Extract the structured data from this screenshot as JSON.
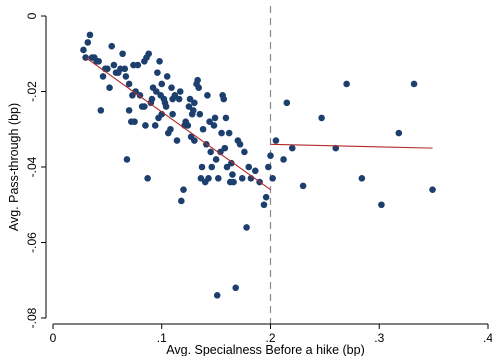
{
  "chart_data": {
    "type": "scatter",
    "xlabel": "Avg. Specialness Before a hike (bp)",
    "ylabel": "Avg. Pass-through (bp)",
    "xlim": [
      0,
      0.4
    ],
    "ylim": [
      -0.08,
      0
    ],
    "x_ticks": [
      {
        "value": 0,
        "label": "0"
      },
      {
        "value": 0.1,
        "label": ".1"
      },
      {
        "value": 0.2,
        "label": ".2"
      },
      {
        "value": 0.3,
        "label": ".3"
      },
      {
        "value": 0.4,
        "label": ".4"
      }
    ],
    "y_ticks": [
      {
        "value": 0,
        "label": "0"
      },
      {
        "value": -0.02,
        "label": "-.02"
      },
      {
        "value": -0.04,
        "label": "-.04"
      },
      {
        "value": -0.06,
        "label": "-.06"
      },
      {
        "value": -0.08,
        "label": "-.08"
      }
    ],
    "grid": false,
    "vertical_reference_line": {
      "x": 0.2,
      "style": "dashed"
    },
    "series": [
      {
        "kind": "points",
        "color": "#1c3f6e",
        "points": [
          [
            0.028,
            -0.009
          ],
          [
            0.03,
            -0.011
          ],
          [
            0.032,
            -0.007
          ],
          [
            0.034,
            -0.005
          ],
          [
            0.036,
            -0.011
          ],
          [
            0.038,
            -0.011
          ],
          [
            0.04,
            -0.012
          ],
          [
            0.042,
            -0.012
          ],
          [
            0.044,
            -0.025
          ],
          [
            0.046,
            -0.016
          ],
          [
            0.048,
            -0.014
          ],
          [
            0.05,
            -0.014
          ],
          [
            0.052,
            -0.019
          ],
          [
            0.054,
            -0.008
          ],
          [
            0.056,
            -0.013
          ],
          [
            0.058,
            -0.015
          ],
          [
            0.06,
            -0.015
          ],
          [
            0.062,
            -0.014
          ],
          [
            0.064,
            -0.01
          ],
          [
            0.066,
            -0.014
          ],
          [
            0.067,
            -0.016
          ],
          [
            0.068,
            -0.038
          ],
          [
            0.07,
            -0.018
          ],
          [
            0.07,
            -0.025
          ],
          [
            0.072,
            -0.028
          ],
          [
            0.073,
            -0.021
          ],
          [
            0.074,
            -0.013
          ],
          [
            0.075,
            -0.028
          ],
          [
            0.076,
            -0.02
          ],
          [
            0.078,
            -0.013
          ],
          [
            0.08,
            -0.021
          ],
          [
            0.082,
            -0.024
          ],
          [
            0.084,
            -0.024
          ],
          [
            0.084,
            -0.012
          ],
          [
            0.085,
            -0.029
          ],
          [
            0.086,
            -0.011
          ],
          [
            0.087,
            -0.043
          ],
          [
            0.088,
            -0.01
          ],
          [
            0.09,
            -0.023
          ],
          [
            0.091,
            -0.022
          ],
          [
            0.092,
            -0.019
          ],
          [
            0.094,
            -0.029
          ],
          [
            0.095,
            -0.02
          ],
          [
            0.096,
            -0.015
          ],
          [
            0.097,
            -0.027
          ],
          [
            0.098,
            -0.012
          ],
          [
            0.099,
            -0.021
          ],
          [
            0.1,
            -0.018
          ],
          [
            0.1,
            -0.026
          ],
          [
            0.102,
            -0.022
          ],
          [
            0.103,
            -0.023
          ],
          [
            0.104,
            -0.024
          ],
          [
            0.105,
            -0.016
          ],
          [
            0.106,
            -0.031
          ],
          [
            0.108,
            -0.03
          ],
          [
            0.109,
            -0.019
          ],
          [
            0.11,
            -0.022
          ],
          [
            0.11,
            -0.026
          ],
          [
            0.112,
            -0.021
          ],
          [
            0.114,
            -0.033
          ],
          [
            0.116,
            -0.022
          ],
          [
            0.117,
            -0.02
          ],
          [
            0.118,
            -0.049
          ],
          [
            0.12,
            -0.046
          ],
          [
            0.121,
            -0.029
          ],
          [
            0.122,
            -0.028
          ],
          [
            0.124,
            -0.029
          ],
          [
            0.125,
            -0.024
          ],
          [
            0.126,
            -0.022
          ],
          [
            0.127,
            -0.032
          ],
          [
            0.128,
            -0.026
          ],
          [
            0.129,
            -0.025
          ],
          [
            0.13,
            -0.023
          ],
          [
            0.13,
            -0.033
          ],
          [
            0.132,
            -0.018
          ],
          [
            0.133,
            -0.017
          ],
          [
            0.134,
            -0.019
          ],
          [
            0.135,
            -0.026
          ],
          [
            0.136,
            -0.043
          ],
          [
            0.137,
            -0.04
          ],
          [
            0.138,
            -0.03
          ],
          [
            0.14,
            -0.044
          ],
          [
            0.141,
            -0.034
          ],
          [
            0.142,
            -0.021
          ],
          [
            0.143,
            -0.043
          ],
          [
            0.144,
            -0.028
          ],
          [
            0.145,
            -0.036
          ],
          [
            0.146,
            -0.04
          ],
          [
            0.148,
            -0.029
          ],
          [
            0.149,
            -0.027
          ],
          [
            0.15,
            -0.038
          ],
          [
            0.151,
            -0.074
          ],
          [
            0.152,
            -0.043
          ],
          [
            0.154,
            -0.036
          ],
          [
            0.155,
            -0.031
          ],
          [
            0.156,
            -0.021
          ],
          [
            0.157,
            -0.022
          ],
          [
            0.158,
            -0.035
          ],
          [
            0.159,
            -0.027
          ],
          [
            0.16,
            -0.04
          ],
          [
            0.162,
            -0.031
          ],
          [
            0.163,
            -0.044
          ],
          [
            0.164,
            -0.039
          ],
          [
            0.165,
            -0.042
          ],
          [
            0.166,
            -0.044
          ],
          [
            0.168,
            -0.072
          ],
          [
            0.17,
            -0.033
          ],
          [
            0.172,
            -0.034
          ],
          [
            0.174,
            -0.043
          ],
          [
            0.176,
            -0.036
          ],
          [
            0.178,
            -0.056
          ],
          [
            0.18,
            -0.04
          ],
          [
            0.182,
            -0.043
          ],
          [
            0.186,
            -0.041
          ],
          [
            0.19,
            -0.044
          ],
          [
            0.194,
            -0.05
          ],
          [
            0.196,
            -0.048
          ],
          [
            0.198,
            -0.04
          ],
          [
            0.2,
            -0.037
          ],
          [
            0.202,
            -0.043
          ],
          [
            0.205,
            -0.033
          ],
          [
            0.212,
            -0.038
          ],
          [
            0.215,
            -0.023
          ],
          [
            0.22,
            -0.035
          ],
          [
            0.23,
            -0.045
          ],
          [
            0.247,
            -0.027
          ],
          [
            0.26,
            -0.035
          ],
          [
            0.27,
            -0.018
          ],
          [
            0.284,
            -0.043
          ],
          [
            0.302,
            -0.05
          ],
          [
            0.318,
            -0.031
          ],
          [
            0.332,
            -0.018
          ],
          [
            0.349,
            -0.046
          ]
        ]
      },
      {
        "kind": "line",
        "color": "#b22a2a",
        "points": [
          [
            0.03,
            -0.011
          ],
          [
            0.2,
            -0.046
          ]
        ]
      },
      {
        "kind": "line",
        "color": "#b22a2a",
        "points": [
          [
            0.2,
            -0.034
          ],
          [
            0.349,
            -0.035
          ]
        ]
      }
    ]
  }
}
